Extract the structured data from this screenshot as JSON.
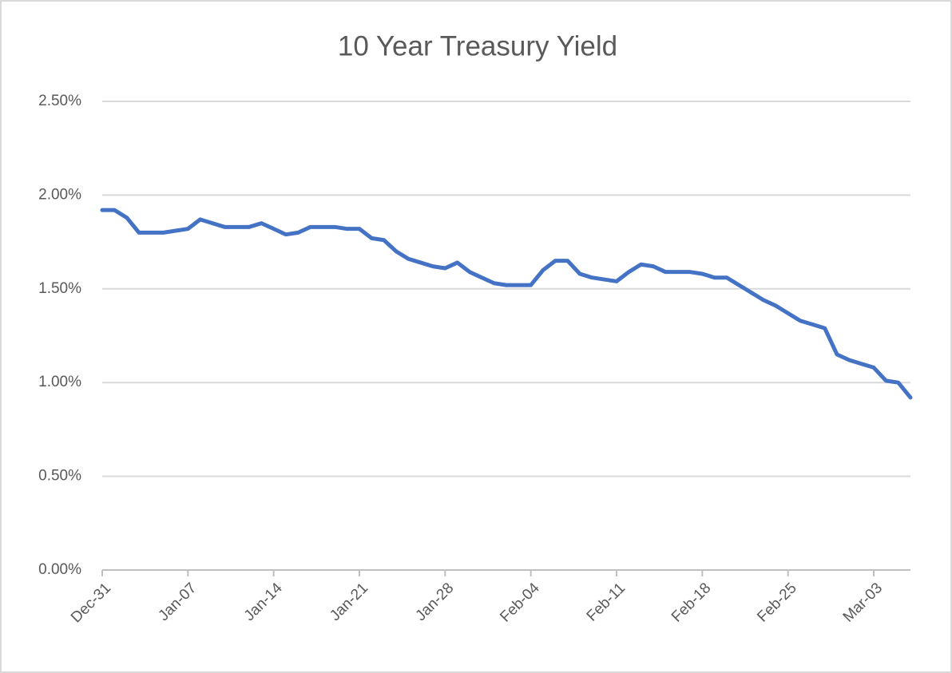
{
  "chart_data": {
    "type": "line",
    "title": "10 Year Treasury Yield",
    "categories": [
      "Dec-31",
      null,
      null,
      null,
      null,
      null,
      null,
      "Jan-07",
      null,
      null,
      null,
      null,
      null,
      null,
      "Jan-14",
      null,
      null,
      null,
      null,
      null,
      null,
      "Jan-21",
      null,
      null,
      null,
      null,
      null,
      null,
      "Jan-28",
      null,
      null,
      null,
      null,
      null,
      null,
      "Feb-04",
      null,
      null,
      null,
      null,
      null,
      null,
      "Feb-11",
      null,
      null,
      null,
      null,
      null,
      null,
      "Feb-18",
      null,
      null,
      null,
      null,
      null,
      null,
      "Feb-25",
      null,
      null,
      null,
      null,
      null,
      null,
      "Mar-03",
      null,
      null,
      null
    ],
    "values": [
      1.92,
      1.92,
      1.88,
      1.8,
      1.8,
      1.8,
      1.81,
      1.82,
      1.87,
      1.85,
      1.83,
      1.83,
      1.83,
      1.85,
      1.82,
      1.79,
      1.8,
      1.83,
      1.83,
      1.83,
      1.82,
      1.82,
      1.77,
      1.76,
      1.7,
      1.66,
      1.64,
      1.62,
      1.61,
      1.64,
      1.59,
      1.56,
      1.53,
      1.52,
      1.52,
      1.52,
      1.6,
      1.65,
      1.65,
      1.58,
      1.56,
      1.55,
      1.54,
      1.59,
      1.63,
      1.62,
      1.59,
      1.59,
      1.59,
      1.58,
      1.56,
      1.56,
      1.52,
      1.48,
      1.44,
      1.41,
      1.37,
      1.33,
      1.31,
      1.29,
      1.15,
      1.12,
      1.1,
      1.08,
      1.01,
      1.0,
      0.92
    ],
    "color": "#4472c4",
    "ylim": [
      0,
      2.5
    ],
    "yticks": [
      {
        "value": 0,
        "label": "0.00%"
      },
      {
        "value": 0.5,
        "label": "0.50%"
      },
      {
        "value": 1,
        "label": "1.00%"
      },
      {
        "value": 1.5,
        "label": "1.50%"
      },
      {
        "value": 2,
        "label": "2.00%"
      },
      {
        "value": 2.5,
        "label": "2.50%"
      }
    ],
    "grid": true
  }
}
